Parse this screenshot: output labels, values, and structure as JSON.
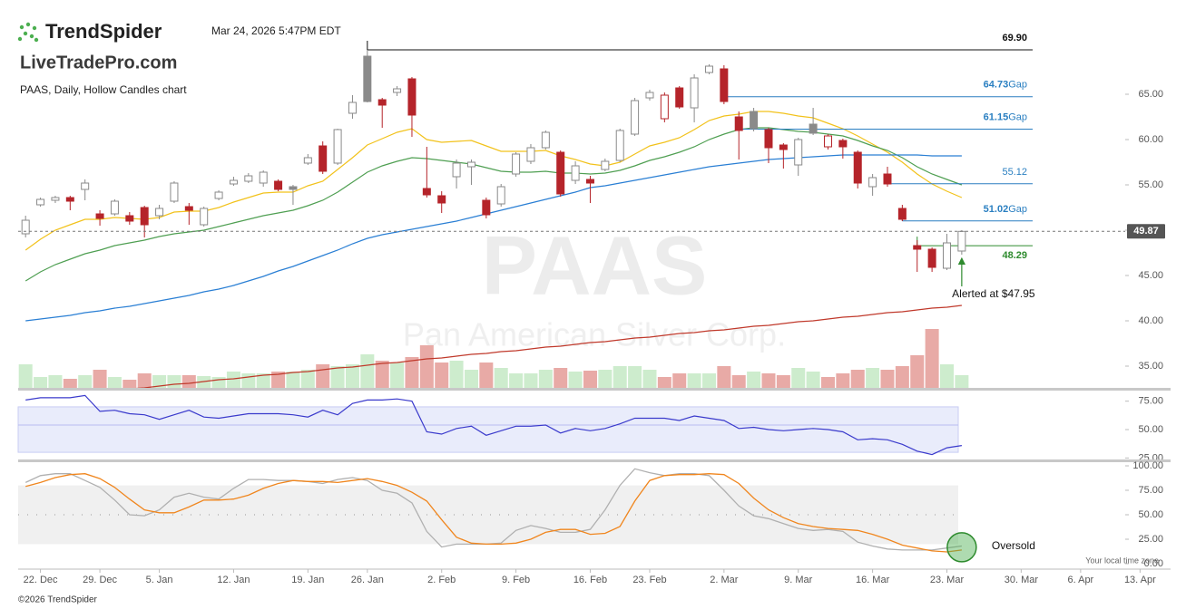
{
  "header": {
    "brand": "TrendSpider",
    "timestamp": "Mar 24, 2026 5:47PM EDT",
    "site": "LiveTradePro.com",
    "chart_label": "PAAS, Daily, Hollow Candles chart",
    "timezone_note": "Your local time zone",
    "footer": "©2026 TrendSpider"
  },
  "chart_data": [
    {
      "type": "candlestick",
      "title": "PAAS",
      "subtitle": "Pan American Silver Corp.",
      "open": [
        49.6,
        52.8,
        53.3,
        53.6,
        54.5,
        51.8,
        51.8,
        51.6,
        52.5,
        51.6,
        53.2,
        52.6,
        50.6,
        53.5,
        55.1,
        55.4,
        55.2,
        55.4,
        54.8,
        57.4,
        59.3,
        57.4,
        62.9,
        69.2,
        64.4,
        65.2,
        66.7,
        54.6,
        53.8,
        55.9,
        57.0,
        53.3,
        52.9,
        56.2,
        57.6,
        59.1,
        58.6,
        55.5,
        55.6,
        56.7,
        57.7,
        60.6,
        64.6,
        62.3,
        65.7,
        63.5,
        67.4,
        67.8,
        62.5,
        63.1,
        61.1,
        59.4,
        57.2,
        61.7,
        59.2,
        59.9,
        58.6,
        54.8,
        56.2,
        52.4,
        48.3,
        47.9,
        45.8,
        47.7
      ],
      "high": [
        51.6,
        53.6,
        53.8,
        53.8,
        55.6,
        52.2,
        53.4,
        52.0,
        52.7,
        52.8,
        55.4,
        53.0,
        52.6,
        54.4,
        55.9,
        56.3,
        56.6,
        55.6,
        55.0,
        58.4,
        59.8,
        61.2,
        64.9,
        69.9,
        64.6,
        65.9,
        66.9,
        59.2,
        54.3,
        57.8,
        57.8,
        53.6,
        55.1,
        58.6,
        59.5,
        61.0,
        58.8,
        57.6,
        56.0,
        57.9,
        61.2,
        64.6,
        65.5,
        65.2,
        65.9,
        67.2,
        68.3,
        68.2,
        63.1,
        63.5,
        61.3,
        59.6,
        60.2,
        63.5,
        60.6,
        60.1,
        58.8,
        56.2,
        57.0,
        52.8,
        48.9,
        48.1,
        49.6,
        50.0
      ],
      "low": [
        49.2,
        52.6,
        53.0,
        52.2,
        53.3,
        50.5,
        51.6,
        50.6,
        49.2,
        51.2,
        53.0,
        50.6,
        50.4,
        53.3,
        54.9,
        55.2,
        54.8,
        54.3,
        52.8,
        57.2,
        56.2,
        57.2,
        62.3,
        64.1,
        61.3,
        64.8,
        60.3,
        53.6,
        51.9,
        54.6,
        55.0,
        51.3,
        52.6,
        55.9,
        57.3,
        58.9,
        53.7,
        55.1,
        53.0,
        56.5,
        57.5,
        60.4,
        64.3,
        61.9,
        63.4,
        61.9,
        67.2,
        63.9,
        57.8,
        60.9,
        57.4,
        56.8,
        56.0,
        60.5,
        58.9,
        57.9,
        54.6,
        53.8,
        54.8,
        51.0,
        45.4,
        45.4,
        45.6,
        47.3
      ],
      "close": [
        51.1,
        53.4,
        53.6,
        53.2,
        55.2,
        51.3,
        53.2,
        51.0,
        50.6,
        52.4,
        55.2,
        52.2,
        52.4,
        54.2,
        55.5,
        56.0,
        56.4,
        54.5,
        54.5,
        58.0,
        56.5,
        61.1,
        64.1,
        64.2,
        63.8,
        65.6,
        62.7,
        53.9,
        53.0,
        57.4,
        57.5,
        51.7,
        54.8,
        58.4,
        59.1,
        60.8,
        54.0,
        57.1,
        55.2,
        57.6,
        61.0,
        64.3,
        65.2,
        64.9,
        63.6,
        66.8,
        68.1,
        64.2,
        61.0,
        61.2,
        59.1,
        58.9,
        60.0,
        60.7,
        60.4,
        59.2,
        55.2,
        55.8,
        55.1,
        51.2,
        47.9,
        45.9,
        48.6,
        49.87
      ],
      "up_color": "#8a8a8a",
      "down_color": "#b5242a",
      "volume": {
        "values": [
          26,
          12,
          14,
          10,
          14,
          20,
          12,
          9,
          16,
          14,
          14,
          14,
          13,
          12,
          18,
          16,
          16,
          18,
          18,
          20,
          26,
          24,
          26,
          37,
          30,
          28,
          34,
          47,
          28,
          30,
          20,
          28,
          22,
          16,
          16,
          20,
          22,
          18,
          19,
          20,
          24,
          24,
          20,
          12,
          16,
          16,
          16,
          24,
          14,
          18,
          16,
          14,
          22,
          18,
          12,
          16,
          20,
          22,
          20,
          24,
          36,
          65,
          26,
          14
        ],
        "up_color": "#cdeccd",
        "down_color": "#e8aaa6"
      },
      "overlays": [
        {
          "color": "#f2c21b",
          "values": [
            47.8,
            49.0,
            50.0,
            50.6,
            51.2,
            51.2,
            51.4,
            51.3,
            51.2,
            51.4,
            52.0,
            52.1,
            52.1,
            52.5,
            53.1,
            53.6,
            54.1,
            54.2,
            54.2,
            54.9,
            55.4,
            56.7,
            58.0,
            59.4,
            60.1,
            60.8,
            61.2,
            60.0,
            59.7,
            59.8,
            59.9,
            59.3,
            58.7,
            58.7,
            58.7,
            58.8,
            58.2,
            57.8,
            57.3,
            57.1,
            57.5,
            58.4,
            59.3,
            59.7,
            60.2,
            61.1,
            62.1,
            62.6,
            62.8,
            63.1,
            63.1,
            62.9,
            62.6,
            62.4,
            61.8,
            61.2,
            60.4,
            59.5,
            58.6,
            57.5,
            56.2,
            55.1,
            54.3,
            53.6
          ]
        },
        {
          "color": "#4f9f52",
          "values": [
            44.4,
            45.4,
            46.2,
            46.8,
            47.4,
            47.8,
            48.3,
            48.6,
            48.9,
            49.3,
            49.6,
            49.8,
            50.0,
            50.4,
            50.8,
            51.2,
            51.6,
            51.9,
            52.2,
            52.7,
            53.3,
            54.2,
            55.3,
            56.4,
            57.1,
            57.6,
            58.0,
            57.9,
            57.7,
            57.5,
            57.3,
            56.9,
            56.5,
            56.4,
            56.4,
            56.5,
            56.3,
            56.3,
            56.2,
            56.3,
            56.6,
            57.1,
            57.7,
            58.1,
            58.6,
            59.2,
            60.0,
            60.6,
            61.1,
            61.3,
            61.3,
            61.1,
            60.9,
            60.8,
            60.6,
            60.4,
            59.9,
            59.3,
            58.8,
            58.0,
            57.0,
            56.2,
            55.6,
            55.0
          ]
        },
        {
          "color": "#2a7fd4",
          "values": [
            40.0,
            40.2,
            40.4,
            40.6,
            40.9,
            41.1,
            41.4,
            41.6,
            41.9,
            42.2,
            42.5,
            42.8,
            43.2,
            43.5,
            43.9,
            44.4,
            44.9,
            45.5,
            46.0,
            46.6,
            47.2,
            47.8,
            48.5,
            49.1,
            49.5,
            49.8,
            50.1,
            50.4,
            50.7,
            51.0,
            51.4,
            51.8,
            52.2,
            52.6,
            53.0,
            53.4,
            53.8,
            54.2,
            54.7,
            54.9,
            55.2,
            55.5,
            55.8,
            56.1,
            56.4,
            56.7,
            57.0,
            57.2,
            57.4,
            57.6,
            57.8,
            57.9,
            58.0,
            58.1,
            58.2,
            58.3,
            58.3,
            58.3,
            58.3,
            58.3,
            58.3,
            58.2,
            58.2,
            58.2
          ]
        },
        {
          "color": "#c0392b",
          "values": [
            31.3,
            31.5,
            31.6,
            31.8,
            32.0,
            32.1,
            32.3,
            32.5,
            32.6,
            32.8,
            33.0,
            33.1,
            33.3,
            33.5,
            33.6,
            33.8,
            34.0,
            34.1,
            34.3,
            34.4,
            34.6,
            34.8,
            34.9,
            35.1,
            35.3,
            35.4,
            35.6,
            35.8,
            35.9,
            36.1,
            36.3,
            36.4,
            36.6,
            36.7,
            36.9,
            37.1,
            37.2,
            37.4,
            37.6,
            37.7,
            37.9,
            38.1,
            38.2,
            38.4,
            38.6,
            38.7,
            38.9,
            39.0,
            39.2,
            39.4,
            39.5,
            39.7,
            39.9,
            40.0,
            40.2,
            40.4,
            40.5,
            40.7,
            40.9,
            41.0,
            41.2,
            41.4,
            41.5,
            41.7
          ]
        }
      ],
      "levels": [
        {
          "value": 69.9,
          "label": "69.90",
          "start": 23,
          "color": "#111111"
        },
        {
          "value": 64.73,
          "label": "64.73",
          "tag": "Gap",
          "start": 47,
          "color": "#2a7fc1"
        },
        {
          "value": 61.15,
          "label": "61.15",
          "tag": "Gap",
          "start": 48,
          "color": "#2a7fc1"
        },
        {
          "value": 55.12,
          "label": "55.12",
          "start": 58,
          "color": "#2a7fc1"
        },
        {
          "value": 51.02,
          "label": "51.02",
          "tag": "Gap",
          "start": 59,
          "color": "#2a7fc1"
        },
        {
          "value": 48.29,
          "label": "48.29",
          "start": 60,
          "color": "#2e8b2e"
        }
      ],
      "last_price": {
        "value": 49.87,
        "label": "49.87"
      },
      "annotation": "Alerted at $47.95",
      "ylim": [
        32.6,
        72.4
      ],
      "yticks": [
        {
          "value": 35,
          "label": "35.00"
        },
        {
          "value": 40,
          "label": "40.00"
        },
        {
          "value": 45,
          "label": "45.00"
        },
        {
          "value": 50,
          "label": "50.00"
        },
        {
          "value": 55,
          "label": "55.00"
        },
        {
          "value": 60,
          "label": "60.00"
        },
        {
          "value": 65,
          "label": "65.00"
        }
      ],
      "xlim": [
        -0.5,
        74
      ],
      "xticks": [
        {
          "value": 1,
          "label": "22. Dec"
        },
        {
          "value": 5,
          "label": "29. Dec"
        },
        {
          "value": 9,
          "label": "5. Jan"
        },
        {
          "value": 14,
          "label": "12. Jan"
        },
        {
          "value": 19,
          "label": "19. Jan"
        },
        {
          "value": 23,
          "label": "26. Jan"
        },
        {
          "value": 28,
          "label": "2. Feb"
        },
        {
          "value": 33,
          "label": "9. Feb"
        },
        {
          "value": 38,
          "label": "16. Feb"
        },
        {
          "value": 42,
          "label": "23. Feb"
        },
        {
          "value": 47,
          "label": "2. Mar"
        },
        {
          "value": 52,
          "label": "9. Mar"
        },
        {
          "value": 57,
          "label": "16. Mar"
        },
        {
          "value": 62,
          "label": "23. Mar"
        },
        {
          "value": 67,
          "label": "30. Mar"
        },
        {
          "value": 71,
          "label": "6. Apr"
        },
        {
          "value": 75,
          "label": "13. Apr"
        }
      ]
    },
    {
      "type": "line",
      "color": "#3a3acc",
      "band": [
        30,
        70
      ],
      "band_color": "#e9ecfb",
      "values": [
        76,
        78,
        78,
        78,
        80,
        66,
        67,
        64,
        63,
        59,
        63,
        67,
        61,
        60,
        62,
        64,
        64,
        64,
        63,
        61,
        67,
        63,
        73,
        76,
        76,
        77,
        75,
        48,
        46,
        51,
        53,
        45,
        49,
        53,
        53,
        54,
        47,
        51,
        49,
        51,
        55,
        60,
        60,
        60,
        58,
        62,
        60,
        58,
        51,
        52,
        50,
        49,
        50,
        51,
        50,
        48,
        41,
        42,
        41,
        37,
        31,
        28,
        34,
        36
      ],
      "ylim": [
        24.5,
        83.5
      ],
      "yticks": [
        {
          "value": 25,
          "label": "25.00"
        },
        {
          "value": 50,
          "label": "50.00"
        },
        {
          "value": 75,
          "label": "75.00"
        }
      ]
    },
    {
      "type": "line",
      "band": [
        20,
        80
      ],
      "band_color": "#f0f0f0",
      "annotation": "Oversold",
      "series": [
        {
          "color": "#b0b0b0",
          "values": [
            83,
            90,
            92,
            92,
            85,
            78,
            65,
            50,
            49,
            55,
            68,
            72,
            68,
            66,
            77,
            86,
            86,
            85,
            85,
            84,
            82,
            86,
            88,
            85,
            75,
            72,
            62,
            33,
            17,
            20,
            20,
            20,
            21,
            34,
            39,
            36,
            32,
            32,
            35,
            55,
            80,
            97,
            93,
            90,
            92,
            92,
            90,
            75,
            59,
            49,
            46,
            41,
            36,
            34,
            35,
            33,
            22,
            18,
            15,
            14,
            14,
            14,
            16,
            18
          ]
        },
        {
          "color": "#f0861e",
          "values": [
            79,
            83,
            88,
            91,
            92,
            87,
            78,
            66,
            55,
            52,
            52,
            58,
            65,
            65,
            66,
            70,
            77,
            82,
            85,
            84,
            84,
            83,
            85,
            87,
            84,
            80,
            73,
            64,
            45,
            27,
            21,
            20,
            20,
            21,
            25,
            32,
            35,
            35,
            30,
            31,
            38,
            64,
            85,
            90,
            91,
            91,
            92,
            91,
            82,
            67,
            55,
            47,
            41,
            38,
            36,
            35,
            34,
            30,
            25,
            19,
            16,
            13,
            12,
            14
          ]
        }
      ],
      "ylim": [
        -2.8,
        102.8
      ],
      "yticks": [
        {
          "value": 0,
          "label": "0.00"
        },
        {
          "value": 25,
          "label": "25.00"
        },
        {
          "value": 50,
          "label": "50.00"
        },
        {
          "value": 75,
          "label": "75.00"
        },
        {
          "value": 100,
          "label": "100.00"
        }
      ]
    }
  ]
}
